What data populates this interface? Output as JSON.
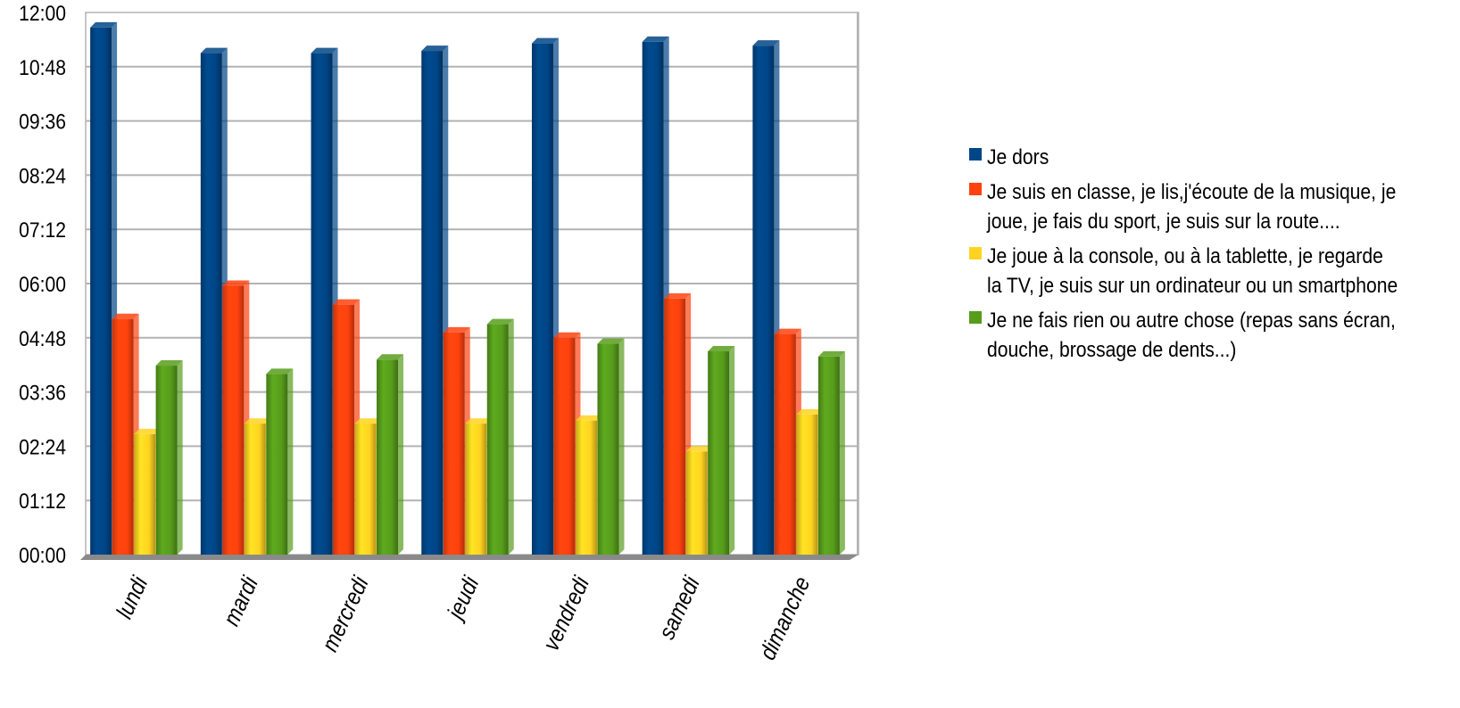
{
  "chart_data": {
    "type": "bar",
    "title": "",
    "xlabel": "",
    "ylabel": "",
    "categories": [
      "lundi",
      "mardi",
      "mercredi",
      "jeudi",
      "vendredi",
      "samedi",
      "dimanche"
    ],
    "y_ticks": [
      "00:00",
      "01:12",
      "02:24",
      "03:36",
      "04:48",
      "06:00",
      "07:12",
      "08:24",
      "09:36",
      "10:48",
      "12:00"
    ],
    "ylim_minutes": [
      0,
      720
    ],
    "grid": true,
    "legend_position": "right",
    "series": [
      {
        "name": "Je dors",
        "color": "#004586",
        "values": [
          "11:40",
          "11:06",
          "11:06",
          "11:09",
          "11:19",
          "11:21",
          "11:16"
        ],
        "values_minutes": [
          700,
          666,
          666,
          669,
          679,
          681,
          676
        ]
      },
      {
        "name": "Je suis en classe, je lis,j'écoute de la musique, je joue, je fais du sport, je suis sur la route....",
        "color": "#ff420e",
        "values": [
          "05:13",
          "05:57",
          "05:32",
          "04:55",
          "04:48",
          "05:40",
          "04:53"
        ],
        "values_minutes": [
          313,
          357,
          332,
          295,
          288,
          340,
          293
        ]
      },
      {
        "name": "Je joue à la console, ou à la tablette, je regarde la TV, je suis sur un ordinateur ou un smartphone",
        "color": "#ffd320",
        "values": [
          "02:40",
          "02:54",
          "02:54",
          "02:54",
          "02:58",
          "02:17",
          "03:06"
        ],
        "values_minutes": [
          160,
          174,
          174,
          174,
          178,
          137,
          186
        ]
      },
      {
        "name": "Je ne fais rien ou autre chose (repas sans écran, douche, brossage de dents...)",
        "color": "#579d1c",
        "values": [
          "04:11",
          "04:00",
          "04:19",
          "05:06",
          "04:40",
          "04:30",
          "04:23"
        ],
        "values_minutes": [
          251,
          240,
          259,
          306,
          280,
          270,
          263
        ]
      }
    ]
  }
}
